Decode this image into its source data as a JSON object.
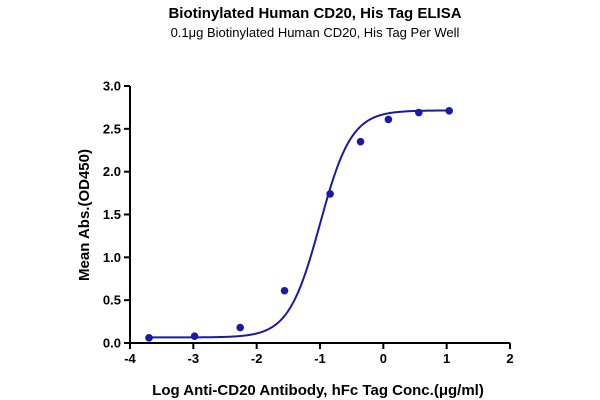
{
  "chart_data": {
    "type": "scatter",
    "title": "Biotinylated Human CD20, His Tag ELISA",
    "subtitle": "0.1μg Biotinylated Human CD20, His Tag Per Well",
    "xlabel": "Log Anti-CD20 Antibody, hFc Tag Conc.(μg/ml)",
    "ylabel": "Mean Abs.(OD450)",
    "xlim": [
      -4,
      2
    ],
    "ylim": [
      0,
      3.0
    ],
    "xticks": [
      "-4",
      "-3",
      "-2",
      "-1",
      "0",
      "1",
      "2"
    ],
    "yticks": [
      "0.0",
      "0.5",
      "1.0",
      "1.5",
      "2.0",
      "2.5",
      "3.0"
    ],
    "grid": false,
    "legend": "none",
    "series": [
      {
        "color": "#1a1aa6",
        "fit": "four-parameter logistic curve",
        "x": [
          -3.7,
          -2.98,
          -2.26,
          -1.56,
          -0.84,
          -0.36,
          0.08,
          0.56,
          1.04
        ],
        "y": [
          0.06,
          0.08,
          0.18,
          0.61,
          1.74,
          2.35,
          2.61,
          2.69,
          2.71
        ]
      }
    ]
  }
}
